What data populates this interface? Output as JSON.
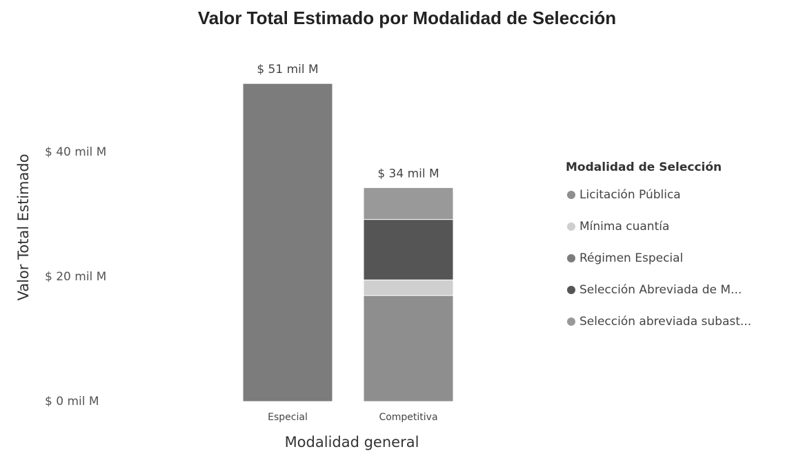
{
  "chart_data": {
    "type": "stacked_bar",
    "title": "Valor Total Estimado por Modalidad de Selección",
    "x_label": "Modalidad general",
    "y_label": "Valor Total Estimado",
    "categories": [
      "Especial",
      "Competitiva"
    ],
    "series": [
      {
        "name": "Licitación Pública",
        "color": "#8e8e8e",
        "values": [
          null,
          17
        ]
      },
      {
        "name": "Mínima cuantía",
        "color": "#cfcfcf",
        "values": [
          null,
          2.5
        ]
      },
      {
        "name": "Régimen Especial",
        "color": "#7c7c7c",
        "values": [
          51,
          null
        ]
      },
      {
        "name": "Selección Abreviada de M...",
        "color": "#555555",
        "values": [
          null,
          9.7
        ]
      },
      {
        "name": "Selección abreviada subast...",
        "color": "#999999",
        "values": [
          null,
          5.1
        ]
      }
    ],
    "total_labels": [
      "$ 51 mil M",
      "$ 34 mil M"
    ],
    "legend_title": "Modalidad de Selección",
    "legend": "right",
    "ylim": [
      0,
      55
    ],
    "yticks": [
      {
        "value": 0,
        "label": "$ 0 mil M"
      },
      {
        "value": 20,
        "label": "$ 20 mil M"
      },
      {
        "value": 40,
        "label": "$ 40 mil M"
      }
    ],
    "grid": false
  }
}
